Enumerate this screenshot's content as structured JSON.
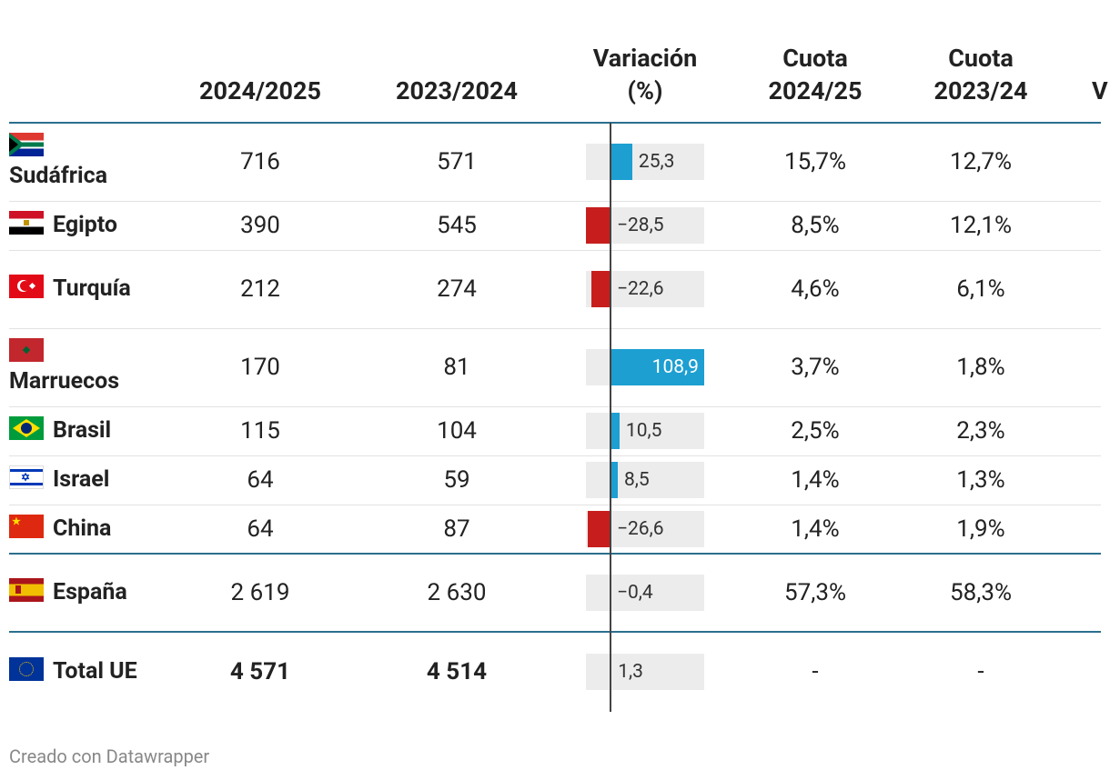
{
  "table": {
    "headers": [
      "2024/2025",
      "2023/2024",
      "Variación (%)",
      "Cuota 2024/25",
      "Cuota 2023/24",
      "V"
    ],
    "rows": [
      {
        "country": "Sudáfrica",
        "cells": [
          "716",
          "571"
        ],
        "variation": {
          "value": 25.3,
          "label": "25,3"
        },
        "shares": [
          "15,7%",
          "12,7%"
        ]
      },
      {
        "country": "Egipto",
        "cells": [
          "390",
          "545"
        ],
        "variation": {
          "value": -28.5,
          "label": "−28,5"
        },
        "shares": [
          "8,5%",
          "12,1%"
        ]
      },
      {
        "country": "Turquía",
        "cells": [
          "212",
          "274"
        ],
        "variation": {
          "value": -22.6,
          "label": "−22,6"
        },
        "shares": [
          "4,6%",
          "6,1%"
        ]
      },
      {
        "country": "Marruecos",
        "cells": [
          "170",
          "81"
        ],
        "variation": {
          "value": 108.9,
          "label": "108,9"
        },
        "shares": [
          "3,7%",
          "1,8%"
        ]
      },
      {
        "country": "Brasil",
        "cells": [
          "115",
          "104"
        ],
        "variation": {
          "value": 10.5,
          "label": "10,5"
        },
        "shares": [
          "2,5%",
          "2,3%"
        ]
      },
      {
        "country": "Israel",
        "cells": [
          "64",
          "59"
        ],
        "variation": {
          "value": 8.5,
          "label": "8,5"
        },
        "shares": [
          "1,4%",
          "1,3%"
        ]
      },
      {
        "country": "China",
        "cells": [
          "64",
          "87"
        ],
        "variation": {
          "value": -26.6,
          "label": "−26,6"
        },
        "shares": [
          "1,4%",
          "1,9%"
        ]
      },
      {
        "country": "España",
        "cells": [
          "2 619",
          "2 630"
        ],
        "variation": {
          "value": -0.4,
          "label": "−0,4"
        },
        "shares": [
          "57,3%",
          "58,3%"
        ]
      },
      {
        "country": "Total UE",
        "cells": [
          "4 571",
          "4 514"
        ],
        "variation": {
          "value": 1.3,
          "label": "1,3"
        },
        "shares": [
          "-",
          "-"
        ]
      }
    ]
  },
  "footer": "Creado con Datawrapper"
}
